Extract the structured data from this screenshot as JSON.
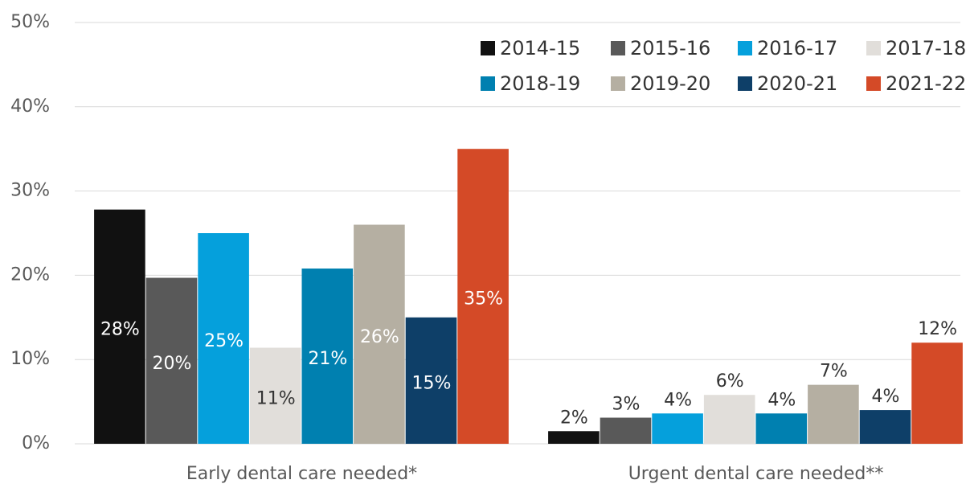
{
  "chart_data": {
    "type": "bar",
    "categories": [
      "Early dental care needed*",
      "Urgent dental care needed**"
    ],
    "series": [
      {
        "name": "2014-15",
        "color": "#111111",
        "values": [
          27.8,
          1.5
        ],
        "value_labels": [
          "28%",
          "2%"
        ]
      },
      {
        "name": "2015-16",
        "color": "#595959",
        "values": [
          19.7,
          3.1
        ],
        "value_labels": [
          "20%",
          "3%"
        ]
      },
      {
        "name": "2016-17",
        "color": "#05a0dc",
        "values": [
          25.0,
          3.6
        ],
        "value_labels": [
          "25%",
          "4%"
        ]
      },
      {
        "name": "2017-18",
        "color": "#e1deda",
        "values": [
          11.4,
          5.8
        ],
        "value_labels": [
          "11%",
          "6%"
        ]
      },
      {
        "name": "2018-19",
        "color": "#0080b0",
        "values": [
          20.8,
          3.6
        ],
        "value_labels": [
          "21%",
          "4%"
        ]
      },
      {
        "name": "2019-20",
        "color": "#b5afa2",
        "values": [
          26.0,
          7.0
        ],
        "value_labels": [
          "26%",
          "7%"
        ]
      },
      {
        "name": "2020-21",
        "color": "#0e3f68",
        "values": [
          15.0,
          4.0
        ],
        "value_labels": [
          "15%",
          "4%"
        ]
      },
      {
        "name": "2021-22",
        "color": "#d44a27",
        "values": [
          35.0,
          12.0
        ],
        "value_labels": [
          "35%",
          "12%"
        ]
      }
    ],
    "ylim": [
      0,
      50
    ],
    "yticks": [
      {
        "value": 0,
        "label": "0%"
      },
      {
        "value": 10,
        "label": "10%"
      },
      {
        "value": 20,
        "label": "20%"
      },
      {
        "value": 30,
        "label": "30%"
      },
      {
        "value": 40,
        "label": "40%"
      },
      {
        "value": 50,
        "label": "50%"
      }
    ],
    "grid": true,
    "legend": "top-right"
  }
}
